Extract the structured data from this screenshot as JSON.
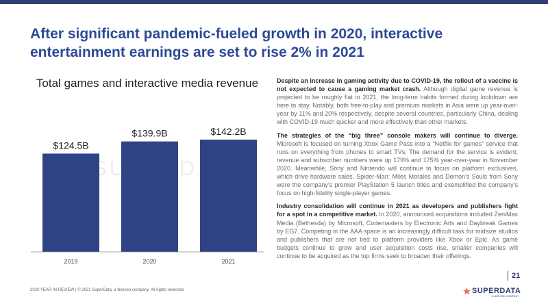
{
  "colors": {
    "accent": "#2c4a96",
    "bar": "#2f4384",
    "brand": "#2d3f73",
    "star": "#e8724a"
  },
  "headline": "After significant pandemic-fueled growth in 2020, interactive entertainment earnings are set to rise 2% in 2021",
  "chart_data": {
    "type": "bar",
    "title": "Total games and interactive media revenue",
    "categories": [
      "2019",
      "2020",
      "2021"
    ],
    "values": [
      124.5,
      139.9,
      142.2
    ],
    "labels": [
      "$124.5B",
      "$139.9B",
      "$142.2B"
    ],
    "xlabel": "",
    "ylabel": "",
    "ylim": [
      0,
      160
    ],
    "watermark": "SUPERDATA"
  },
  "paragraphs": [
    {
      "lead": "Despite an increase in gaming activity due to COVID-19, the rollout of a vaccine is not expected to cause a gaming market crash.",
      "body": " Although digital game revenue is projected to be roughly flat in 2021, the long-term habits formed during lockdown are here to stay. Notably, both free-to-play and premium markets in Asia were up year-over-year by 11% and 20% respectively, despite several countries, particularly China, dealing with COVID-19 much quicker and more effectively than other markets."
    },
    {
      "lead": "The strategies of the “big three” console makers will continue to diverge.",
      "body": " Microsoft is focused on turning Xbox Game Pass into a “Netflix for games” service that runs on everything from phones to smart TVs. The demand for the service is evident; revenue and subscriber numbers were up 179% and 175% year-over-year in November 2020. Meanwhile, Sony and Nintendo will continue to focus on platform exclusives, which drive hardware sales. Spider-Man: Miles Morales and Demon’s Souls from Sony were the company’s premier PlayStation 5 launch titles and exemplified the company’s focus on high-fidelity single-player games."
    },
    {
      "lead": "Industry consolidation will continue in 2021 as developers and publishers fight for a spot in a competitive market.",
      "body": " In 2020, announced acquisitions included ZeniMax Media (Bethesda) by Microsoft, Codemasters by Electronic Arts and Daybreak Games by EG7. Competing in the AAA space is an increasingly difficult task for midsize studios and publishers that are not tied to platform providers like Xbox or Epic. As game budgets continue to grow and user acquisition costs rise, smaller companies will continue to be acquired as the top firms seek to broaden their offerings."
    }
  ],
  "footer": "2020 YEAR IN REVIEW | © 2021 SuperData, a Nielsen company. All rights reserved.",
  "page_number": "21",
  "logo": {
    "name": "SUPERDATA",
    "sub": "A NIELSEN COMPANY",
    "icon": "star-icon"
  }
}
